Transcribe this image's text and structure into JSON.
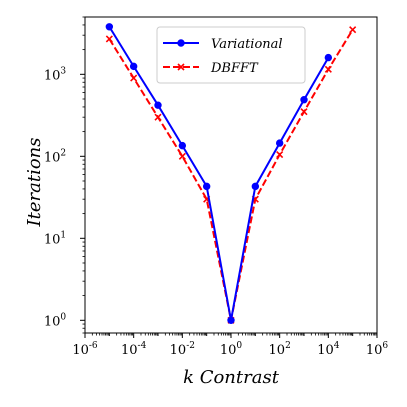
{
  "chart_data": {
    "type": "line",
    "xscale": "log",
    "yscale": "log",
    "xlabel": "k Contrast",
    "ylabel": "Iterations",
    "xlim": [
      1e-06,
      1000000
    ],
    "ylim": [
      0.7,
      5000
    ],
    "x_tick_labels": [
      {
        "base": "10",
        "exp": "-6"
      },
      {
        "base": "10",
        "exp": "-4"
      },
      {
        "base": "10",
        "exp": "-2"
      },
      {
        "base": "10",
        "exp": "0"
      },
      {
        "base": "10",
        "exp": "2"
      },
      {
        "base": "10",
        "exp": "4"
      },
      {
        "base": "10",
        "exp": "6"
      }
    ],
    "y_tick_labels": [
      {
        "base": "10",
        "exp": "0"
      },
      {
        "base": "10",
        "exp": "1"
      },
      {
        "base": "10",
        "exp": "2"
      },
      {
        "base": "10",
        "exp": "3"
      }
    ],
    "legend": {
      "position": "top-center"
    },
    "series": [
      {
        "name": "Variational",
        "color": "#0000ff",
        "marker": "circle",
        "linestyle": "solid",
        "x": [
          1e-05,
          0.0001,
          0.001,
          0.01,
          0.1,
          1,
          10,
          100,
          1000,
          10000
        ],
        "y": [
          3800,
          1250,
          420,
          135,
          43,
          1,
          43,
          145,
          490,
          1600
        ]
      },
      {
        "name": "DBFFT",
        "color": "#ff0000",
        "marker": "x",
        "linestyle": "dashed",
        "x": [
          1e-05,
          0.0001,
          0.001,
          0.01,
          0.1,
          1,
          10,
          100,
          1000,
          10000,
          100000
        ],
        "y": [
          2700,
          900,
          300,
          100,
          30,
          1,
          30,
          105,
          350,
          1150,
          3500
        ]
      }
    ]
  }
}
